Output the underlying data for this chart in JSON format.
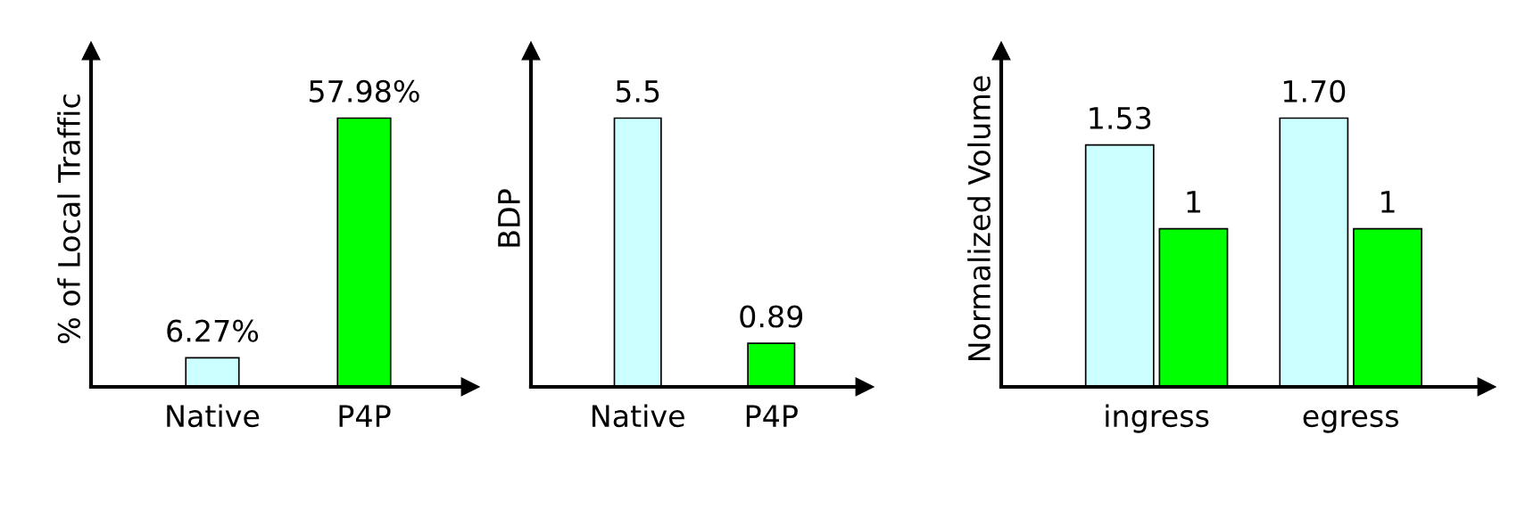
{
  "chart_data": [
    {
      "type": "bar",
      "ylabel": "% of Local Traffic",
      "categories": [
        "Native",
        "P4P"
      ],
      "series": [
        {
          "color": "#ccffff",
          "values": [
            6.27,
            null
          ],
          "value_labels": [
            "6.27%",
            null
          ]
        },
        {
          "color": "#00ff00",
          "values": [
            null,
            57.98
          ],
          "value_labels": [
            null,
            "57.98%"
          ]
        }
      ],
      "tick_labels": "x",
      "grid": false,
      "legend": false
    },
    {
      "type": "bar",
      "ylabel": "BDP",
      "categories": [
        "Native",
        "P4P"
      ],
      "series": [
        {
          "color": "#ccffff",
          "values": [
            5.5,
            null
          ],
          "value_labels": [
            "5.5",
            null
          ]
        },
        {
          "color": "#00ff00",
          "values": [
            null,
            0.89
          ],
          "value_labels": [
            null,
            "0.89"
          ]
        }
      ],
      "tick_labels": "x",
      "grid": false,
      "legend": false
    },
    {
      "type": "bar",
      "ylabel": "Normalized Volume",
      "categories": [
        "ingress",
        "egress"
      ],
      "series": [
        {
          "color": "#ccffff",
          "values": [
            1.53,
            1.7
          ],
          "value_labels": [
            "1.53",
            "1.70"
          ]
        },
        {
          "color": "#00ff00",
          "values": [
            1,
            1
          ],
          "value_labels": [
            "1",
            "1"
          ]
        }
      ],
      "tick_labels": "x",
      "grid": false,
      "legend": false
    }
  ]
}
